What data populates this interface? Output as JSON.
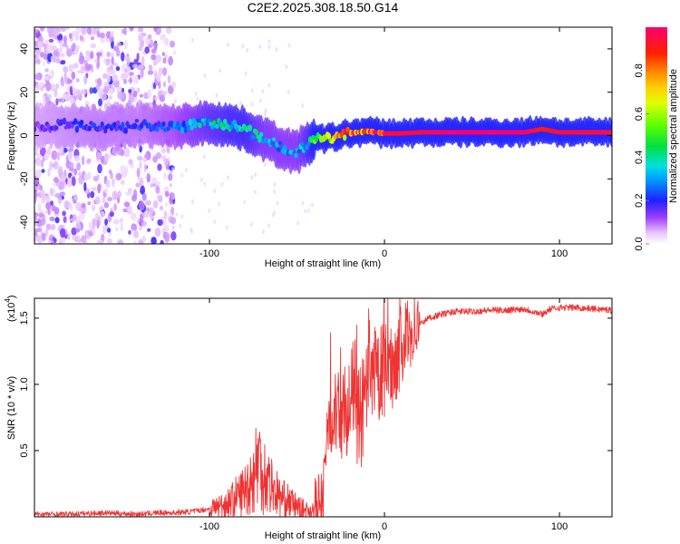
{
  "title": "C2E2.2025.308.18.50.G14",
  "chart_data": [
    {
      "type": "heatmap",
      "title": "C2E2.2025.308.18.50.G14",
      "xlabel": "Height of straight line (km)",
      "ylabel": "Frequency (Hz)",
      "xlim": [
        -200,
        130
      ],
      "ylim": [
        -50,
        50
      ],
      "xticks": [
        -100,
        0,
        100
      ],
      "yticks": [
        -40,
        -20,
        0,
        20,
        40
      ],
      "ridge": {
        "x": [
          -200,
          -180,
          -160,
          -140,
          -120,
          -100,
          -90,
          -80,
          -70,
          -60,
          -50,
          -45,
          -40,
          -30,
          -20,
          -10,
          0,
          10,
          20,
          40,
          60,
          80,
          90,
          100,
          130
        ],
        "y": [
          4,
          5,
          3,
          5,
          4,
          6,
          5,
          3,
          -1,
          -5,
          -8,
          -4,
          -2,
          -1,
          1,
          2,
          1,
          1,
          1.5,
          1.5,
          1.5,
          1.5,
          3,
          1.5,
          1.5
        ],
        "amplitude": [
          0.15,
          0.18,
          0.2,
          0.2,
          0.25,
          0.35,
          0.38,
          0.4,
          0.32,
          0.3,
          0.3,
          0.35,
          0.45,
          0.75,
          0.85,
          0.9,
          0.95,
          0.95,
          0.95,
          1.0,
          1.0,
          1.0,
          0.9,
          0.95,
          0.95
        ]
      },
      "colorbar": {
        "label": "Normalized spectral amplitude",
        "range": [
          0,
          1
        ],
        "ticks": [
          0.0,
          0.2,
          0.4,
          0.6,
          0.8
        ]
      }
    },
    {
      "type": "line",
      "xlabel": "Height of straight line (km)",
      "ylabel": "SNR (10 * v/v)",
      "yscale_label": "(x10",
      "yscale_exp": "4",
      "xlim": [
        -200,
        130
      ],
      "ylim": [
        0,
        1.65
      ],
      "xticks": [
        -100,
        0,
        100
      ],
      "yticks": [
        0.5,
        1.0,
        1.5
      ],
      "color": "#ee3333",
      "series": [
        {
          "name": "SNR",
          "x": [
            -200,
            -180,
            -160,
            -140,
            -130,
            -120,
            -110,
            -100,
            -90,
            -85,
            -80,
            -75,
            -72,
            -70,
            -65,
            -60,
            -55,
            -50,
            -45,
            -40,
            -35,
            -33,
            -30,
            -25,
            -20,
            -17,
            -15,
            -10,
            -5,
            0,
            5,
            10,
            15,
            20,
            25,
            30,
            40,
            50,
            60,
            70,
            80,
            90,
            95,
            100,
            110,
            120,
            130
          ],
          "y": [
            0.02,
            0.02,
            0.03,
            0.02,
            0.03,
            0.03,
            0.04,
            0.06,
            0.1,
            0.15,
            0.2,
            0.3,
            0.45,
            0.35,
            0.25,
            0.15,
            0.12,
            0.08,
            0.05,
            0.05,
            0.1,
            0.6,
            0.8,
            0.75,
            0.85,
            1.0,
            0.7,
            0.9,
            1.05,
            1.1,
            1.15,
            1.3,
            1.4,
            1.45,
            1.5,
            1.52,
            1.55,
            1.55,
            1.56,
            1.56,
            1.57,
            1.53,
            1.57,
            1.58,
            1.58,
            1.57,
            1.56
          ]
        }
      ]
    }
  ]
}
